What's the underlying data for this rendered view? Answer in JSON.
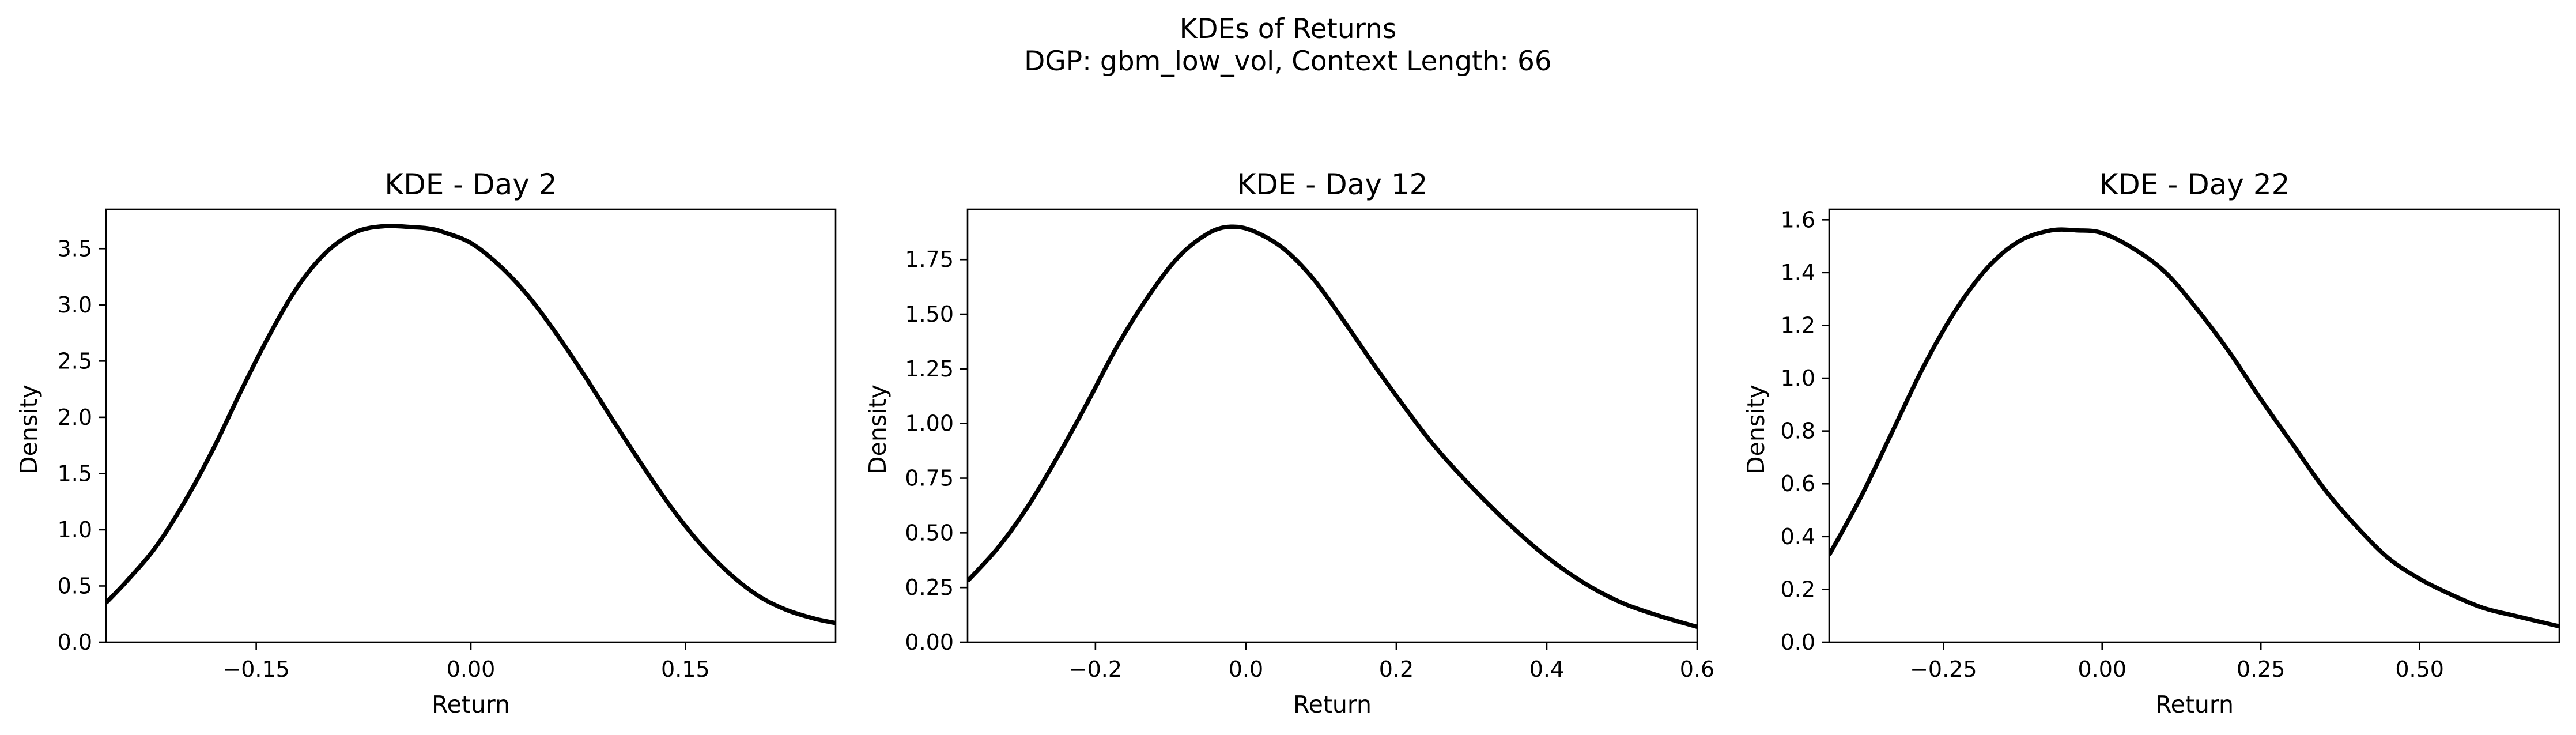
{
  "figure": {
    "suptitle_line1": "KDEs of Returns",
    "suptitle_line2": "DGP: gbm_low_vol, Context Length: 66",
    "line_color": "#000000",
    "background": "#ffffff"
  },
  "chart_data": [
    {
      "type": "line",
      "title": "KDE - Day 2",
      "xlabel": "Return",
      "ylabel": "Density",
      "xlim": [
        -0.255,
        0.255
      ],
      "ylim": [
        0.0,
        3.85
      ],
      "xticks": [
        -0.15,
        0.0,
        0.15
      ],
      "xtick_labels": [
        "−0.15",
        "0.00",
        "0.15"
      ],
      "yticks": [
        0.0,
        0.5,
        1.0,
        1.5,
        2.0,
        2.5,
        3.0,
        3.5
      ],
      "ytick_labels": [
        "0.0",
        "0.5",
        "1.0",
        "1.5",
        "2.0",
        "2.5",
        "3.0",
        "3.5"
      ],
      "grid": false,
      "series": [
        {
          "color": "#000000",
          "x": [
            -0.255,
            -0.24,
            -0.22,
            -0.2,
            -0.18,
            -0.16,
            -0.14,
            -0.12,
            -0.1,
            -0.08,
            -0.06,
            -0.04,
            -0.03,
            -0.02,
            0.0,
            0.02,
            0.04,
            0.06,
            0.08,
            0.1,
            0.12,
            0.14,
            0.16,
            0.18,
            0.2,
            0.22,
            0.24,
            0.255
          ],
          "y": [
            0.35,
            0.55,
            0.85,
            1.25,
            1.72,
            2.25,
            2.75,
            3.18,
            3.48,
            3.65,
            3.7,
            3.69,
            3.68,
            3.65,
            3.55,
            3.35,
            3.08,
            2.74,
            2.36,
            1.96,
            1.57,
            1.2,
            0.88,
            0.62,
            0.42,
            0.29,
            0.21,
            0.17
          ]
        }
      ]
    },
    {
      "type": "line",
      "title": "KDE - Day 12",
      "xlabel": "Return",
      "ylabel": "Density",
      "xlim": [
        -0.37,
        0.6
      ],
      "ylim": [
        0.0,
        1.98
      ],
      "xticks": [
        -0.2,
        0.0,
        0.2,
        0.4,
        0.6
      ],
      "xtick_labels": [
        "−0.2",
        "0.0",
        "0.2",
        "0.4",
        "0.6"
      ],
      "yticks": [
        0.0,
        0.25,
        0.5,
        0.75,
        1.0,
        1.25,
        1.5,
        1.75
      ],
      "ytick_labels": [
        "0.00",
        "0.25",
        "0.50",
        "0.75",
        "1.00",
        "1.25",
        "1.50",
        "1.75"
      ],
      "grid": false,
      "series": [
        {
          "color": "#000000",
          "x": [
            -0.37,
            -0.33,
            -0.29,
            -0.25,
            -0.21,
            -0.17,
            -0.13,
            -0.09,
            -0.05,
            -0.02,
            0.01,
            0.05,
            0.09,
            0.13,
            0.17,
            0.21,
            0.25,
            0.3,
            0.35,
            0.4,
            0.45,
            0.5,
            0.55,
            0.6
          ],
          "y": [
            0.28,
            0.43,
            0.62,
            0.85,
            1.1,
            1.36,
            1.58,
            1.76,
            1.87,
            1.9,
            1.88,
            1.8,
            1.66,
            1.47,
            1.27,
            1.08,
            0.9,
            0.71,
            0.54,
            0.39,
            0.27,
            0.18,
            0.12,
            0.07
          ]
        }
      ]
    },
    {
      "type": "line",
      "title": "KDE - Day 22",
      "xlabel": "Return",
      "ylabel": "Density",
      "xlim": [
        -0.43,
        0.72
      ],
      "ylim": [
        0.0,
        1.64
      ],
      "xticks": [
        -0.25,
        0.0,
        0.25,
        0.5
      ],
      "xtick_labels": [
        "−0.25",
        "0.00",
        "0.25",
        "0.50"
      ],
      "yticks": [
        0.0,
        0.2,
        0.4,
        0.6,
        0.8,
        1.0,
        1.2,
        1.4,
        1.6
      ],
      "ytick_labels": [
        "0.0",
        "0.2",
        "0.4",
        "0.6",
        "0.8",
        "1.0",
        "1.2",
        "1.4",
        "1.6"
      ],
      "grid": false,
      "series": [
        {
          "color": "#000000",
          "x": [
            -0.43,
            -0.38,
            -0.33,
            -0.28,
            -0.23,
            -0.18,
            -0.13,
            -0.08,
            -0.04,
            0.0,
            0.05,
            0.1,
            0.15,
            0.2,
            0.25,
            0.3,
            0.35,
            0.4,
            0.45,
            0.5,
            0.55,
            0.6,
            0.65,
            0.72
          ],
          "y": [
            0.33,
            0.55,
            0.8,
            1.05,
            1.26,
            1.42,
            1.52,
            1.56,
            1.56,
            1.55,
            1.49,
            1.4,
            1.26,
            1.1,
            0.92,
            0.75,
            0.58,
            0.44,
            0.32,
            0.24,
            0.18,
            0.13,
            0.1,
            0.06
          ]
        }
      ]
    }
  ]
}
